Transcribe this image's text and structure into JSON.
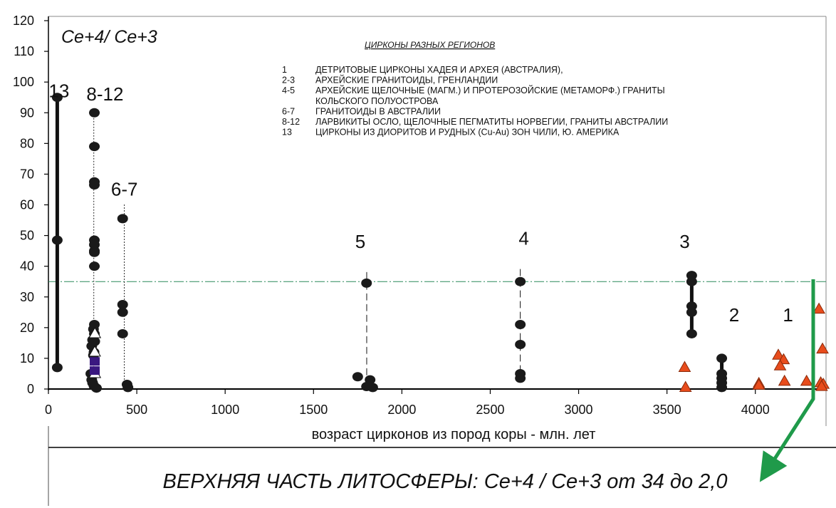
{
  "chart_data": {
    "type": "scatter",
    "title": "Ce+4/ Ce+3",
    "xlabel": "возраст цирконов из пород коры - млн. лет",
    "xlim": [
      0,
      4400
    ],
    "ylim": [
      0,
      120
    ],
    "xticks": [
      0,
      500,
      1000,
      1500,
      2000,
      2500,
      3000,
      3500,
      4000
    ],
    "yticks": [
      0,
      10,
      20,
      30,
      40,
      50,
      60,
      70,
      80,
      90,
      100,
      110,
      120
    ],
    "grid": false,
    "reference_line": {
      "y": 35
    },
    "legend": {
      "heading": "ЦИРКОНЫ РАЗНЫХ РЕГИОНОВ",
      "entries": [
        {
          "key": "1",
          "text": "ДЕТРИТОВЫЕ ЦИРКОНЫ ХАДЕЯ И АРХЕЯ (АВСТРАЛИЯ),"
        },
        {
          "key": "2-3",
          "text": "АРХЕЙСКИЕ ГРАНИТОИДЫ, ГРЕНЛАНДИИ"
        },
        {
          "key": "4-5",
          "text": "АРХЕЙСКИЕ ЩЕЛОЧНЫЕ (МАГМ.) И ПРОТЕРОЗОЙСКИЕ (МЕТАМОРФ.) ГРАНИТЫ"
        },
        {
          "key": "",
          "text": "КОЛЬСКОГО ПОЛУОСТРОВА"
        },
        {
          "key": "6-7",
          "text": "ГРАНИТОИДЫ В АВСТРАЛИИ"
        },
        {
          "key": "8-12",
          "text": "ЛАРВИКИТЫ ОСЛО, ЩЕЛОЧНЫЕ ПЕГМАТИТЫ НОРВЕГИИ, ГРАНИТЫ АВСТРАЛИИ"
        },
        {
          "key": "13",
          "text": "ЦИРКОНЫ ИЗ ДИОРИТОВ И РУДНЫХ (Cu-Au)  ЗОН ЧИЛИ, Ю. АМЕРИКА"
        }
      ]
    },
    "group_labels": [
      {
        "text": "13",
        "x": 60,
        "y": 95
      },
      {
        "text": "8-12",
        "x": 320,
        "y": 94
      },
      {
        "text": "6-7",
        "x": 430,
        "y": 63
      },
      {
        "text": "5",
        "x": 1765,
        "y": 46
      },
      {
        "text": "4",
        "x": 2690,
        "y": 47
      },
      {
        "text": "3",
        "x": 3600,
        "y": 46
      },
      {
        "text": "2",
        "x": 3880,
        "y": 22
      },
      {
        "text": "1",
        "x": 4185,
        "y": 22
      }
    ],
    "series": [
      {
        "id": "13",
        "marker": "circle",
        "color": "#1a1a1a",
        "points": [
          [
            50,
            95
          ],
          [
            50,
            48.5
          ],
          [
            50,
            7
          ]
        ],
        "range": [
          7,
          95
        ],
        "range_style": "solid"
      },
      {
        "id": "8-12",
        "marker": "circle",
        "color": "#1a1a1a",
        "points": [
          [
            260,
            90
          ],
          [
            260,
            79
          ],
          [
            260,
            67.5
          ],
          [
            260,
            66.5
          ],
          [
            260,
            48.5
          ],
          [
            260,
            47
          ],
          [
            260,
            45
          ],
          [
            260,
            44.5
          ],
          [
            260,
            40
          ],
          [
            260,
            21
          ],
          [
            255,
            19.5
          ],
          [
            260,
            18
          ],
          [
            250,
            16
          ],
          [
            262,
            15.5
          ],
          [
            245,
            14
          ],
          [
            258,
            12
          ],
          [
            255,
            11
          ],
          [
            240,
            5
          ],
          [
            245,
            3
          ],
          [
            250,
            2
          ],
          [
            258,
            1
          ],
          [
            272,
            0.3
          ]
        ],
        "range": [
          0,
          90
        ],
        "range_style": "dotted"
      },
      {
        "id": "8-12",
        "marker": "triangle",
        "color": "#ffffff",
        "points": [
          [
            263,
            18
          ],
          [
            262,
            12
          ],
          [
            263,
            5
          ]
        ]
      },
      {
        "id": "8-12",
        "marker": "square",
        "color": "#3a1880",
        "points": [
          [
            262,
            9
          ],
          [
            262,
            6
          ]
        ]
      },
      {
        "id": "6-7",
        "marker": "circle",
        "color": "#1a1a1a",
        "points": [
          [
            420,
            55.5
          ],
          [
            420,
            27.5
          ],
          [
            420,
            25
          ],
          [
            420,
            18
          ],
          [
            445,
            1.5
          ],
          [
            450,
            0.5
          ]
        ],
        "range": [
          0,
          60
        ],
        "range_style": "dotted"
      },
      {
        "id": "5",
        "marker": "circle",
        "color": "#1a1a1a",
        "points": [
          [
            1800,
            34.5
          ],
          [
            1750,
            4
          ],
          [
            1800,
            0.8
          ],
          [
            1820,
            3
          ],
          [
            1835,
            0.5
          ]
        ],
        "range": [
          0,
          38
        ],
        "range_style": "dashed"
      },
      {
        "id": "4",
        "marker": "circle",
        "color": "#1a1a1a",
        "points": [
          [
            2670,
            35
          ],
          [
            2670,
            21
          ],
          [
            2670,
            14.5
          ],
          [
            2670,
            5
          ],
          [
            2670,
            3.5
          ]
        ],
        "range": [
          3.5,
          39
        ],
        "range_style": "dashed"
      },
      {
        "id": "3",
        "marker": "circle",
        "color": "#1a1a1a",
        "points": [
          [
            3640,
            37
          ],
          [
            3640,
            35
          ],
          [
            3640,
            27
          ],
          [
            3640,
            25
          ],
          [
            3640,
            18
          ]
        ],
        "range": [
          18,
          37
        ],
        "range_style": "thick"
      },
      {
        "id": "2",
        "marker": "circle",
        "color": "#1a1a1a",
        "points": [
          [
            3810,
            10
          ],
          [
            3810,
            5
          ],
          [
            3810,
            3.5
          ],
          [
            3810,
            2
          ],
          [
            3810,
            0.5
          ]
        ],
        "range": [
          0.5,
          10
        ],
        "range_style": "thick"
      },
      {
        "id": "3",
        "marker": "triangle",
        "color": "#e84c1c",
        "points": [
          [
            3600,
            7
          ],
          [
            3605,
            0.5
          ]
        ]
      },
      {
        "id": "1",
        "marker": "triangle",
        "color": "#e84c1c",
        "points": [
          [
            4020,
            1.8
          ],
          [
            4020,
            1.2
          ],
          [
            4130,
            11
          ],
          [
            4160,
            9.5
          ],
          [
            4140,
            7.5
          ],
          [
            4165,
            2.5
          ],
          [
            4290,
            2.5
          ],
          [
            4370,
            2
          ],
          [
            4360,
            26
          ],
          [
            4380,
            13
          ],
          [
            4385,
            1.5
          ],
          [
            4375,
            0.8
          ]
        ]
      }
    ]
  },
  "bottom_caption": "ВЕРХНЯЯ ЧАСТЬ ЛИТОСФЕРЫ: Ce+4 / Ce+3 от 34 до 2,0"
}
